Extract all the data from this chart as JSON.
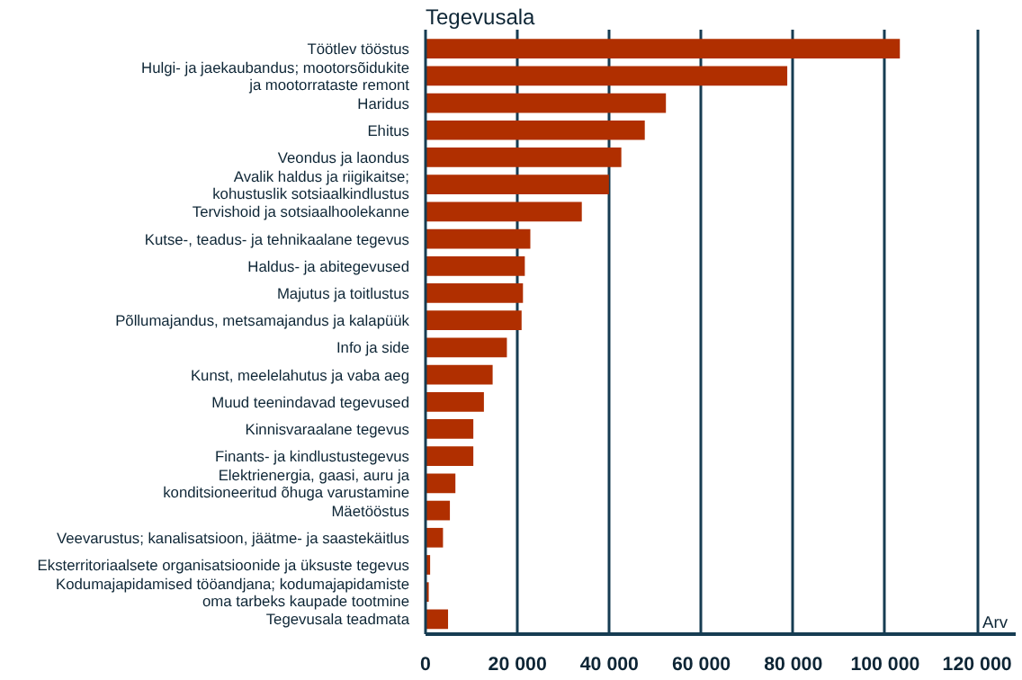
{
  "chart_data": {
    "type": "bar",
    "orientation": "horizontal",
    "title": "Tegevusala",
    "xlabel": "Arv",
    "categories": [
      "Töötlev tööstus",
      "Hulgi- ja jaekaubandus; mootorsõidukite\nja mootorrataste remont",
      "Haridus",
      "Ehitus",
      "Veondus ja laondus",
      "Avalik haldus ja riigikaitse;\nkohustuslik sotsiaalkindlustus",
      "Tervishoid ja sotsiaalhoolekanne",
      "Kutse-, teadus- ja tehnikaalane tegevus",
      "Haldus- ja abitegevused",
      "Majutus ja toitlustus",
      "Põllumajandus, metsamajandus ja kalapüük",
      "Info ja side",
      "Kunst, meelelahutus ja vaba aeg",
      "Muud teenindavad tegevused",
      "Kinnisvaraalane tegevus",
      "Finants- ja kindlustustegevus",
      "Elektrienergia, gaasi, auru ja\nkonditsioneeritud õhuga varustamine",
      "Mäetööstus",
      "Veevarustus; kanalisatsioon, jäätme- ja saastekäitlus",
      "Eksterritoriaalsete organisatsioonide ja üksuste tegevus",
      "Kodumajapidamised tööandjana; kodumajapidamiste\noma tarbeks kaupade tootmine",
      "Tegevusala teadmata"
    ],
    "values": [
      103200,
      78700,
      52300,
      47700,
      42600,
      39900,
      34000,
      22800,
      21600,
      21200,
      20900,
      17700,
      14600,
      12700,
      10400,
      10400,
      6500,
      5300,
      3800,
      1000,
      700,
      4900
    ],
    "color": "#b02f00",
    "xlim": [
      0,
      120000
    ],
    "xticks": [
      0,
      {
        "value": 20000,
        "label": "20 000"
      },
      {
        "value": 40000,
        "label": "40 000"
      },
      {
        "value": 60000,
        "label": "60 000"
      },
      {
        "value": 80000,
        "label": "80 000"
      },
      {
        "value": 100000,
        "label": "100 000"
      },
      {
        "value": 120000,
        "label": "120 000"
      }
    ],
    "grid": "x"
  }
}
